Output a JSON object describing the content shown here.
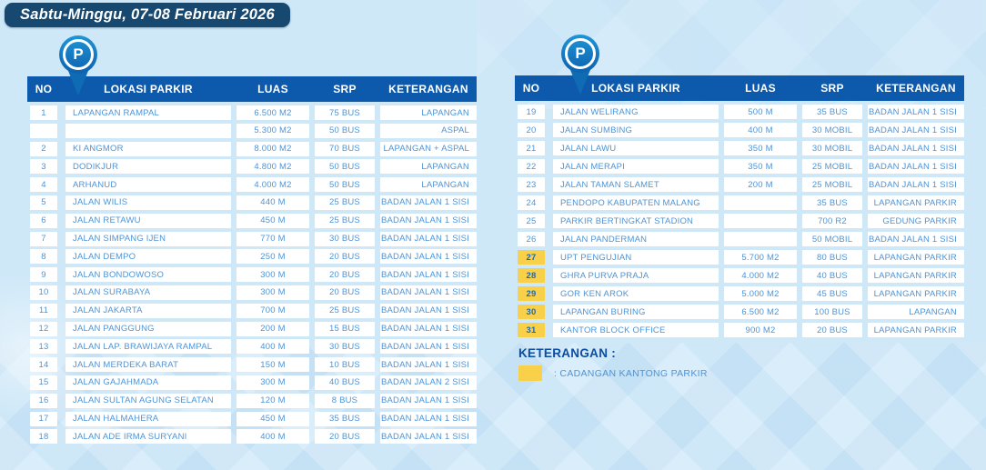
{
  "title_banner": "Sabtu-Minggu, 07-08 Februari 2026",
  "pin_icon_letter": "P",
  "table_headers": {
    "no": "NO",
    "lokasi": "LOKASI PARKIR",
    "luas": "LUAS",
    "srp": "SRP",
    "keterangan": "KETERANGAN"
  },
  "left_table_rows": [
    {
      "no": "1",
      "lokasi": "LAPANGAN RAMPAL",
      "luas": "6.500 M2",
      "srp": "75 BUS",
      "keterangan": "LAPANGAN",
      "highlight": false
    },
    {
      "no": "",
      "lokasi": "",
      "luas": "5.300 M2",
      "srp": "50 BUS",
      "keterangan": "ASPAL",
      "highlight": false
    },
    {
      "no": "2",
      "lokasi": "KI ANGMOR",
      "luas": "8.000 M2",
      "srp": "70 BUS",
      "keterangan": "LAPANGAN + ASPAL",
      "highlight": false
    },
    {
      "no": "3",
      "lokasi": "DODIKJUR",
      "luas": "4.800 M2",
      "srp": "50 BUS",
      "keterangan": "LAPANGAN",
      "highlight": false
    },
    {
      "no": "4",
      "lokasi": "ARHANUD",
      "luas": "4.000 M2",
      "srp": "50 BUS",
      "keterangan": "LAPANGAN",
      "highlight": false
    },
    {
      "no": "5",
      "lokasi": "JALAN WILIS",
      "luas": "440 M",
      "srp": "25 BUS",
      "keterangan": "BADAN JALAN 1 SISI",
      "highlight": false
    },
    {
      "no": "6",
      "lokasi": "JALAN RETAWU",
      "luas": "450 M",
      "srp": "25 BUS",
      "keterangan": "BADAN JALAN 1 SISI",
      "highlight": false
    },
    {
      "no": "7",
      "lokasi": "JALAN SIMPANG IJEN",
      "luas": "770 M",
      "srp": "30 BUS",
      "keterangan": "BADAN JALAN 1 SISI",
      "highlight": false
    },
    {
      "no": "8",
      "lokasi": "JALAN DEMPO",
      "luas": "250 M",
      "srp": "20 BUS",
      "keterangan": "BADAN JALAN 1 SISI",
      "highlight": false
    },
    {
      "no": "9",
      "lokasi": "JALAN BONDOWOSO",
      "luas": "300 M",
      "srp": "20 BUS",
      "keterangan": "BADAN JALAN 1 SISI",
      "highlight": false
    },
    {
      "no": "10",
      "lokasi": "JALAN SURABAYA",
      "luas": "300 M",
      "srp": "20 BUS",
      "keterangan": "BADAN JALAN 1 SISI",
      "highlight": false
    },
    {
      "no": "11",
      "lokasi": "JALAN JAKARTA",
      "luas": "700 M",
      "srp": "25 BUS",
      "keterangan": "BADAN JALAN 1 SISI",
      "highlight": false
    },
    {
      "no": "12",
      "lokasi": "JALAN PANGGUNG",
      "luas": "200 M",
      "srp": "15 BUS",
      "keterangan": "BADAN JALAN 1 SISI",
      "highlight": false
    },
    {
      "no": "13",
      "lokasi": "JALAN LAP. BRAWIJAYA RAMPAL",
      "luas": "400 M",
      "srp": "30 BUS",
      "keterangan": "BADAN JALAN 1 SISI",
      "highlight": false
    },
    {
      "no": "14",
      "lokasi": "JALAN MERDEKA BARAT",
      "luas": "150 M",
      "srp": "10 BUS",
      "keterangan": "BADAN JALAN 1 SISI",
      "highlight": false
    },
    {
      "no": "15",
      "lokasi": "JALAN GAJAHMADA",
      "luas": "300 M",
      "srp": "40 BUS",
      "keterangan": "BADAN JALAN 2 SISI",
      "highlight": false
    },
    {
      "no": "16",
      "lokasi": "JALAN SULTAN AGUNG SELATAN",
      "luas": "120 M",
      "srp": "8 BUS",
      "keterangan": "BADAN JALAN 1 SISI",
      "highlight": false
    },
    {
      "no": "17",
      "lokasi": "JALAN HALMAHERA",
      "luas": "450 M",
      "srp": "35 BUS",
      "keterangan": "BADAN JALAN 1 SISI",
      "highlight": false
    },
    {
      "no": "18",
      "lokasi": "JALAN ADE IRMA SURYANI",
      "luas": "400 M",
      "srp": "20 BUS",
      "keterangan": "BADAN JALAN 1 SISI",
      "highlight": false
    }
  ],
  "right_table_rows": [
    {
      "no": "19",
      "lokasi": "JALAN WELIRANG",
      "luas": "500 M",
      "srp": "35 BUS",
      "keterangan": "BADAN JALAN 1 SISI",
      "highlight": false
    },
    {
      "no": "20",
      "lokasi": "JALAN SUMBING",
      "luas": "400 M",
      "srp": "30 MOBIL",
      "keterangan": "BADAN JALAN 1 SISI",
      "highlight": false
    },
    {
      "no": "21",
      "lokasi": "JALAN LAWU",
      "luas": "350 M",
      "srp": "30 MOBIL",
      "keterangan": "BADAN JALAN 1 SISI",
      "highlight": false
    },
    {
      "no": "22",
      "lokasi": "JALAN MERAPI",
      "luas": "350 M",
      "srp": "25 MOBIL",
      "keterangan": "BADAN JALAN 1 SISI",
      "highlight": false
    },
    {
      "no": "23",
      "lokasi": "JALAN TAMAN SLAMET",
      "luas": "200 M",
      "srp": "25 MOBIL",
      "keterangan": "BADAN JALAN 1 SISI",
      "highlight": false
    },
    {
      "no": "24",
      "lokasi": "PENDOPO KABUPATEN MALANG",
      "luas": "",
      "srp": "35 BUS",
      "keterangan": "LAPANGAN PARKIR",
      "highlight": false
    },
    {
      "no": "25",
      "lokasi": "PARKIR BERTINGKAT STADION",
      "luas": "",
      "srp": "700 R2",
      "keterangan": "GEDUNG PARKIR",
      "highlight": false
    },
    {
      "no": "26",
      "lokasi": "JALAN PANDERMAN",
      "luas": "",
      "srp": "50 MOBIL",
      "keterangan": "BADAN JALAN 1 SISI",
      "highlight": false
    },
    {
      "no": "27",
      "lokasi": "UPT PENGUJIAN",
      "luas": "5.700 M2",
      "srp": "80 BUS",
      "keterangan": "LAPANGAN PARKIR",
      "highlight": true
    },
    {
      "no": "28",
      "lokasi": "GHRA PURVA PRAJA",
      "luas": "4.000 M2",
      "srp": "40 BUS",
      "keterangan": "LAPANGAN PARKIR",
      "highlight": true
    },
    {
      "no": "29",
      "lokasi": "GOR KEN AROK",
      "luas": "5.000 M2",
      "srp": "45 BUS",
      "keterangan": "LAPANGAN PARKIR",
      "highlight": true
    },
    {
      "no": "30",
      "lokasi": "LAPANGAN BURING",
      "luas": "6.500 M2",
      "srp": "100 BUS",
      "keterangan": "LAPANGAN",
      "highlight": true
    },
    {
      "no": "31",
      "lokasi": "KANTOR BLOCK OFFICE",
      "luas": "900 M2",
      "srp": "20 BUS",
      "keterangan": "LAPANGAN PARKIR",
      "highlight": true
    }
  ],
  "legend": {
    "label": "KETERANGAN :",
    "swatch_meaning": ": CADANGAN KANTONG PARKIR"
  },
  "colors": {
    "page_bg": "#CFE8F8",
    "banner_bg": "#17486F",
    "table_header_bg": "#0D5AAC",
    "cell_text": "#4D94D8",
    "highlight_yellow": "#F8D04A",
    "pin_blue": "#0F6CB4"
  }
}
